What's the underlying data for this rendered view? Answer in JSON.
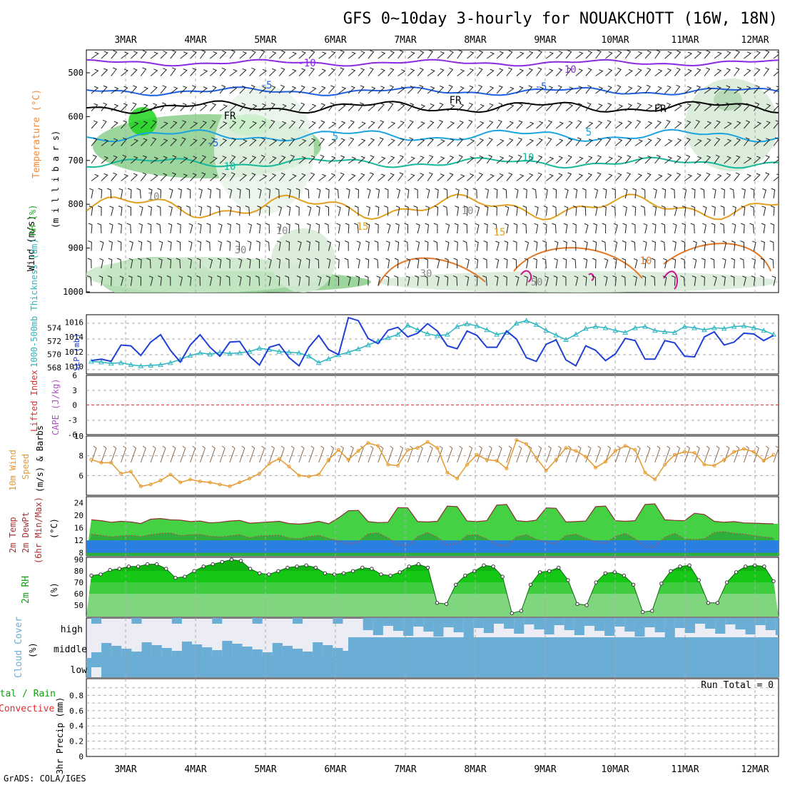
{
  "title": "GFS 0~10day 3-hourly for NOUAKCHOTT (16W, 18N)",
  "footer": "GrADS: COLA/IGES",
  "dates": [
    "3MAR",
    "4MAR",
    "5MAR",
    "6MAR",
    "7MAR",
    "8MAR",
    "9MAR",
    "10MAR",
    "11MAR",
    "12MAR"
  ],
  "colors": {
    "slp": "#1f3fd6",
    "thickness": "#2ab5c0",
    "wind10m": "#e59a2e",
    "temp_band": "#44d144",
    "dew_band": "#2a7fe0",
    "rh": "#10c010",
    "cloud": "#6aaed6",
    "cloud_bg": "#ececf4"
  },
  "panels": {
    "upper": {
      "ylabel_wind": "Wind (m/s)",
      "ylabel_temp": "Temperature (°C)",
      "ylabel_rh": "RH (%)",
      "ylabel_unit": "(m i l l i b a r s)",
      "yticks": [
        "500",
        "600",
        "700",
        "800",
        "900",
        "1000"
      ],
      "contour_labels": [
        "-10",
        "-10",
        "-5",
        "-5",
        "FR",
        "FR",
        "FR",
        "-5",
        "5",
        "5",
        "10",
        "10",
        "15",
        "15",
        "10",
        "10",
        "10",
        "30",
        "30",
        "50",
        "10"
      ]
    },
    "slp": {
      "ylabel_thk": "1000-500mb Thickness (dm)",
      "ylabel_slp": "SLP (mb)",
      "left_ticks": [
        "574",
        "572",
        "570",
        "568"
      ],
      "right_ticks": [
        "1016",
        "1014",
        "1012",
        "1010"
      ]
    },
    "cape": {
      "ylabel_li": "Lifted Index",
      "ylabel_cape": "CAPE (J/kg)",
      "ticks": [
        "6",
        "3",
        "0",
        "-3",
        "-6"
      ]
    },
    "wind": {
      "ylabel_main": "10m Wind",
      "ylabel_sub": "Speed",
      "ylabel_units": "(m/s) & Barbs",
      "ticks": [
        "10",
        "8",
        "6"
      ]
    },
    "temp": {
      "ylabel_temp": "2m Temp",
      "ylabel_dew": "2m DewPt",
      "ylabel_sub": "(6hr Min/Max)",
      "ylabel_units": "(°C)",
      "ticks": [
        "24",
        "20",
        "16",
        "12",
        "8"
      ]
    },
    "rh": {
      "ylabel": "2m RH",
      "ylabel_units": "(%)",
      "ticks": [
        "90",
        "80",
        "70",
        "60",
        "50"
      ]
    },
    "cloud": {
      "ylabel": "Cloud Cover",
      "ylabel_units": "(%)",
      "levels": [
        "high",
        "middle",
        "low"
      ]
    },
    "precip": {
      "ylabel_total": "Total / Rain",
      "ylabel_conv": "Convective",
      "ylabel_units": "3hr Precip (mm)",
      "ticks": [
        "0.8",
        "0.6",
        "0.4",
        "0.2",
        "0"
      ],
      "run_total": "Run Total = 0"
    }
  },
  "chart_data": [
    {
      "type": "line",
      "title": "",
      "series": [
        {
          "name": "SLP (mb)",
          "axis": "right",
          "values": [
            1010.8,
            1011.0,
            1010.7,
            1012.9,
            1012.8,
            1011.5,
            1013.3,
            1014.3,
            1012.2,
            1010.6,
            1012.9,
            1014.3,
            1012.6,
            1011.4,
            1013.3,
            1013.4,
            1011.4,
            1010.2,
            1012.6,
            1013.0,
            1011.2,
            1010.1,
            1012.6,
            1014.2,
            1012.3,
            1011.6,
            1016.6,
            1016.2,
            1013.8,
            1013.1,
            1014.9,
            1015.3,
            1014.0,
            1014.5,
            1015.8,
            1014.8,
            1012.8,
            1012.4,
            1014.8,
            1014.2,
            1012.6,
            1012.6,
            1014.8,
            1013.7,
            1011.2,
            1010.7,
            1013.0,
            1013.6,
            1010.9,
            1010.1,
            1012.8,
            1012.2,
            1010.8,
            1011.7,
            1013.8,
            1013.5,
            1011.0,
            1011.0,
            1013.5,
            1013.2,
            1011.4,
            1011.3,
            1014.0,
            1014.7,
            1012.9,
            1013.3,
            1014.5,
            1014.4,
            1013.5,
            1014.2
          ]
        },
        {
          "name": "1000-500mb Thickness (dm)",
          "axis": "left",
          "values": [
            568.9,
            568.8,
            568.6,
            568.7,
            568.4,
            568.2,
            568.3,
            568.4,
            568.7,
            569.2,
            569.8,
            570.2,
            570.0,
            570.3,
            570.1,
            570.2,
            570.4,
            570.9,
            570.7,
            570.4,
            570.3,
            570.2,
            569.7,
            568.7,
            569.3,
            569.9,
            570.3,
            570.8,
            571.4,
            572.0,
            572.5,
            573.0,
            574.4,
            573.7,
            573.1,
            572.8,
            573.0,
            574.2,
            574.6,
            574.3,
            573.7,
            573.0,
            573.3,
            574.7,
            575.1,
            574.5,
            573.6,
            572.9,
            572.2,
            573.0,
            573.9,
            574.2,
            574.0,
            573.6,
            573.3,
            574.0,
            574.2,
            573.6,
            573.4,
            573.3,
            574.2,
            574.0,
            573.7,
            574.0,
            573.9,
            574.2,
            574.3,
            574.0,
            573.6,
            573.0
          ]
        }
      ],
      "ylim_left": [
        567,
        576
      ],
      "ylim_right": [
        1009,
        1017
      ]
    },
    {
      "type": "line",
      "title": "",
      "series": [
        {
          "name": "Lifted Index",
          "values": [
            0,
            0,
            0,
            0,
            0,
            0,
            0,
            0,
            0,
            0
          ]
        }
      ],
      "ylim": [
        -6,
        6
      ]
    },
    {
      "type": "line",
      "title": "",
      "series": [
        {
          "name": "10m Wind Speed (m/s)",
          "values": [
            7.6,
            7.3,
            7.3,
            6.2,
            6.4,
            4.9,
            5.1,
            5.5,
            6.1,
            5.3,
            5.6,
            5.4,
            5.3,
            5.1,
            4.9,
            5.3,
            5.7,
            6.2,
            7.2,
            7.7,
            6.9,
            6.0,
            5.9,
            6.1,
            7.6,
            8.6,
            7.6,
            8.5,
            9.3,
            9.0,
            7.1,
            7.0,
            8.6,
            8.8,
            9.4,
            8.8,
            6.3,
            5.7,
            7.1,
            8.1,
            7.6,
            7.5,
            6.7,
            9.6,
            9.2,
            7.8,
            6.5,
            7.6,
            8.8,
            8.5,
            7.9,
            6.8,
            7.4,
            8.5,
            9.0,
            8.6,
            6.3,
            5.6,
            7.1,
            8.1,
            8.4,
            8.3,
            7.1,
            7.0,
            7.6,
            8.4,
            8.7,
            8.4,
            7.5,
            8.1
          ]
        }
      ],
      "ylim": [
        4,
        10
      ]
    },
    {
      "type": "area",
      "title": "",
      "series": [
        {
          "name": "2m Temp",
          "values": [
            18.6,
            18.3,
            17.8,
            18.1,
            17.9,
            17.4,
            18.8,
            19.0,
            18.6,
            18.5,
            18.0,
            18.2,
            17.6,
            17.8,
            18.2,
            18.4,
            17.5,
            17.7,
            17.9,
            18.1,
            17.4,
            17.2,
            17.5,
            18.1,
            17.3,
            19.2,
            21.5,
            21.6,
            18.0,
            17.7,
            17.8,
            22.5,
            22.4,
            18.0,
            17.9,
            18.1,
            23.0,
            22.8,
            18.2,
            18.0,
            18.3,
            23.3,
            23.5,
            18.3,
            18.0,
            18.5,
            22.4,
            22.3,
            17.9,
            18.0,
            18.2,
            22.8,
            23.0,
            18.3,
            18.1,
            18.3,
            23.5,
            23.7,
            18.6,
            18.4,
            18.3,
            20.7,
            20.3,
            18.1,
            17.8,
            18.0,
            17.6,
            17.5,
            17.4,
            17.3
          ]
        },
        {
          "name": "2m DewPt",
          "values": [
            14.0,
            13.6,
            13.1,
            13.4,
            13.6,
            13.2,
            13.8,
            14.2,
            14.4,
            13.5,
            13.8,
            13.9,
            13.3,
            13.1,
            13.4,
            13.8,
            12.8,
            13.4,
            13.5,
            13.7,
            12.7,
            12.5,
            13.2,
            13.6,
            12.6,
            11.8,
            10.8,
            11.5,
            14.1,
            14.4,
            12.8,
            10.5,
            10.3,
            13.2,
            14.5,
            13.0,
            10.5,
            11.0,
            13.6,
            13.8,
            12.4,
            10.5,
            10.2,
            13.1,
            13.8,
            12.3,
            11.4,
            11.0,
            13.5,
            14.0,
            12.7,
            11.5,
            11.2,
            13.2,
            14.2,
            12.5,
            10.0,
            9.9,
            13.0,
            14.2,
            12.5,
            12.2,
            12.5,
            14.5,
            14.8,
            14.2,
            14.0,
            13.5,
            13.1,
            12.8
          ]
        }
      ],
      "ylim": [
        7,
        26
      ]
    },
    {
      "type": "area",
      "title": "",
      "series": [
        {
          "name": "2m RH (%)",
          "values": [
            76,
            77,
            81,
            82,
            84,
            84,
            86,
            86,
            82,
            74,
            75,
            80,
            84,
            86,
            88,
            90,
            89,
            82,
            78,
            77,
            80,
            83,
            84,
            85,
            83,
            78,
            77,
            78,
            80,
            83,
            82,
            77,
            76,
            79,
            84,
            86,
            83,
            52,
            51,
            68,
            76,
            80,
            85,
            84,
            75,
            43,
            45,
            68,
            79,
            80,
            83,
            72,
            51,
            50,
            70,
            78,
            79,
            76,
            68,
            44,
            45,
            69,
            80,
            84,
            85,
            72,
            52,
            52,
            70,
            79,
            84,
            85,
            84,
            71
          ]
        }
      ],
      "ylim": [
        40,
        92
      ]
    },
    {
      "type": "heatmap",
      "title": "",
      "y_categories": [
        "high",
        "middle",
        "low"
      ],
      "x_range": [
        "3MAR",
        "12MAR"
      ],
      "series": [
        {
          "name": "high",
          "note": "intermittent"
        },
        {
          "name": "middle",
          "note": "partial until 6MAR, then full"
        },
        {
          "name": "low",
          "note": "full"
        }
      ]
    },
    {
      "type": "bar",
      "title": "",
      "series": [
        {
          "name": "3hr Precip (mm)",
          "values": [
            0,
            0,
            0,
            0,
            0,
            0,
            0,
            0,
            0,
            0
          ]
        }
      ],
      "ylim": [
        0,
        1
      ]
    }
  ]
}
